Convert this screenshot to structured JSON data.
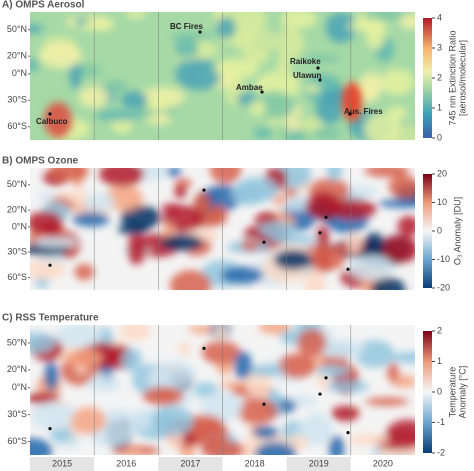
{
  "panels": [
    {
      "title": "A) OMPS Aerosol",
      "colorbar_label": [
        "745 nm Extinction Ratio",
        "[aerosol/molecular]"
      ],
      "clim": [
        0,
        4
      ],
      "cticks": [
        0,
        1,
        2,
        3,
        4
      ],
      "annotations": [
        "Calbuco",
        "BC Fires",
        "Raikoke",
        "Ambae",
        "Ulawun",
        "Aus. Fires"
      ]
    },
    {
      "title": "B) OMPS Ozone",
      "colorbar_label": [
        "O₃ Anomaly [DU]"
      ],
      "clim": [
        -20,
        20
      ],
      "cticks": [
        -20,
        -10,
        0,
        10,
        20
      ]
    },
    {
      "title": "C) RSS Temperature",
      "colorbar_label": [
        "Temperature",
        "Anomaly [°C]"
      ],
      "clim": [
        -2,
        2
      ],
      "cticks": [
        -2,
        -1,
        0,
        1,
        2
      ]
    }
  ],
  "ylim": [
    -75,
    70
  ],
  "yticks": [
    {
      "value": 50,
      "label": "50°N"
    },
    {
      "value": 20,
      "label": "20°N"
    },
    {
      "value": 0,
      "label": "0°N"
    },
    {
      "value": -30,
      "label": "30°S"
    },
    {
      "value": -60,
      "label": "60°S"
    }
  ],
  "years": [
    "2015",
    "2016",
    "2017",
    "2018",
    "2019",
    "2020"
  ]
}
